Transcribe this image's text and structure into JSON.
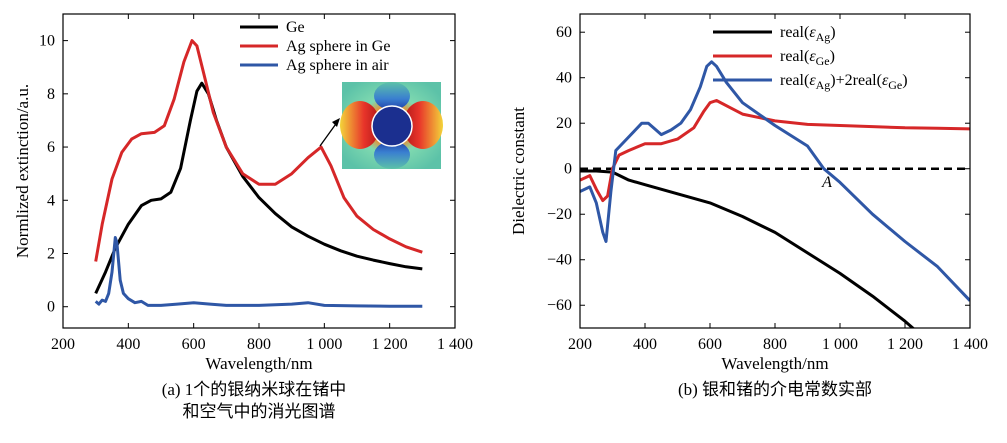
{
  "chart_data": [
    {
      "id": "a",
      "type": "line",
      "xlabel": "Wavelength/nm",
      "ylabel": "Normlized extinction/a.u.",
      "xlim": [
        200,
        1400
      ],
      "ylim": [
        -0.8,
        11
      ],
      "xticks": [
        200,
        400,
        600,
        800,
        1000,
        1200,
        1400
      ],
      "xtick_labels": [
        "200",
        "400",
        "600",
        "800",
        "1 000",
        "1 200",
        "1 400"
      ],
      "yticks": [
        0,
        2,
        4,
        6,
        8,
        10
      ],
      "ytick_labels": [
        "0",
        "2",
        "4",
        "6",
        "8",
        "10"
      ],
      "legend_position": "top-center",
      "caption": [
        "(a) 1个的银纳米球在锗中",
        "和空气中的消光图谱"
      ],
      "inset": "field map of Ag sphere with arrow to peak near 1000 nm",
      "series": [
        {
          "name": "Ge",
          "color": "#000000",
          "points": [
            [
              300,
              0.5
            ],
            [
              330,
              1.3
            ],
            [
              360,
              2.2
            ],
            [
              400,
              3.1
            ],
            [
              440,
              3.8
            ],
            [
              470,
              4.0
            ],
            [
              500,
              4.05
            ],
            [
              530,
              4.3
            ],
            [
              560,
              5.2
            ],
            [
              590,
              7.0
            ],
            [
              610,
              8.1
            ],
            [
              625,
              8.4
            ],
            [
              645,
              8.0
            ],
            [
              670,
              7.0
            ],
            [
              700,
              6.0
            ],
            [
              750,
              4.9
            ],
            [
              800,
              4.1
            ],
            [
              850,
              3.5
            ],
            [
              900,
              3.0
            ],
            [
              950,
              2.65
            ],
            [
              1000,
              2.35
            ],
            [
              1050,
              2.1
            ],
            [
              1100,
              1.9
            ],
            [
              1150,
              1.75
            ],
            [
              1200,
              1.62
            ],
            [
              1250,
              1.5
            ],
            [
              1300,
              1.42
            ]
          ]
        },
        {
          "name": "Ag sphere in Ge",
          "color": "#d62728",
          "points": [
            [
              300,
              1.7
            ],
            [
              320,
              3.1
            ],
            [
              350,
              4.8
            ],
            [
              380,
              5.8
            ],
            [
              410,
              6.3
            ],
            [
              440,
              6.5
            ],
            [
              480,
              6.55
            ],
            [
              510,
              6.8
            ],
            [
              540,
              7.8
            ],
            [
              570,
              9.2
            ],
            [
              595,
              10.0
            ],
            [
              610,
              9.8
            ],
            [
              630,
              8.8
            ],
            [
              660,
              7.3
            ],
            [
              700,
              6.0
            ],
            [
              750,
              5.0
            ],
            [
              800,
              4.6
            ],
            [
              850,
              4.6
            ],
            [
              900,
              5.0
            ],
            [
              950,
              5.6
            ],
            [
              990,
              6.0
            ],
            [
              1020,
              5.3
            ],
            [
              1060,
              4.1
            ],
            [
              1100,
              3.4
            ],
            [
              1150,
              2.9
            ],
            [
              1200,
              2.55
            ],
            [
              1250,
              2.25
            ],
            [
              1300,
              2.05
            ]
          ]
        },
        {
          "name": "Ag sphere in air",
          "color": "#2f57a6",
          "points": [
            [
              300,
              0.2
            ],
            [
              310,
              0.1
            ],
            [
              320,
              0.25
            ],
            [
              330,
              0.2
            ],
            [
              340,
              0.5
            ],
            [
              350,
              1.3
            ],
            [
              360,
              2.6
            ],
            [
              365,
              2.4
            ],
            [
              375,
              1.0
            ],
            [
              385,
              0.5
            ],
            [
              400,
              0.3
            ],
            [
              420,
              0.15
            ],
            [
              440,
              0.2
            ],
            [
              460,
              0.05
            ],
            [
              500,
              0.05
            ],
            [
              550,
              0.1
            ],
            [
              600,
              0.15
            ],
            [
              650,
              0.1
            ],
            [
              700,
              0.05
            ],
            [
              800,
              0.05
            ],
            [
              900,
              0.1
            ],
            [
              950,
              0.15
            ],
            [
              1000,
              0.05
            ],
            [
              1100,
              0.03
            ],
            [
              1200,
              0.02
            ],
            [
              1300,
              0.02
            ]
          ]
        }
      ]
    },
    {
      "id": "b",
      "type": "line",
      "xlabel": "Wavelength/nm",
      "ylabel": "Dielectric constant",
      "xlim": [
        200,
        1400
      ],
      "ylim": [
        -70,
        68
      ],
      "xticks": [
        200,
        400,
        600,
        800,
        1000,
        1200,
        1400
      ],
      "xtick_labels": [
        "200",
        "400",
        "600",
        "800",
        "1 000",
        "1 200",
        "1 400"
      ],
      "yticks": [
        -60,
        -40,
        -20,
        0,
        20,
        40,
        60
      ],
      "ytick_labels": [
        "−60",
        "−40",
        "−20",
        "0",
        "20",
        "40",
        "60"
      ],
      "legend_position": "top-right",
      "annotation": "A",
      "zero_line": "dashed",
      "caption": [
        "(b) 银和锗的介电常数实部"
      ],
      "series": [
        {
          "name_main": "real(",
          "name_sym": "ε",
          "name_sub": "Ag",
          "name_end": ")",
          "color": "#000000",
          "points": [
            [
              200,
              -1
            ],
            [
              250,
              -1
            ],
            [
              300,
              -1.5
            ],
            [
              350,
              -5
            ],
            [
              400,
              -7
            ],
            [
              500,
              -11
            ],
            [
              600,
              -15
            ],
            [
              700,
              -21
            ],
            [
              800,
              -28
            ],
            [
              900,
              -37
            ],
            [
              1000,
              -46
            ],
            [
              1100,
              -56
            ],
            [
              1200,
              -67
            ],
            [
              1240,
              -72
            ]
          ]
        },
        {
          "name_main": "real(",
          "name_sym": "ε",
          "name_sub": "Ge",
          "name_end": ")",
          "color": "#d62728",
          "points": [
            [
              200,
              -5
            ],
            [
              230,
              -3
            ],
            [
              250,
              -9
            ],
            [
              270,
              -14
            ],
            [
              285,
              -12
            ],
            [
              300,
              0
            ],
            [
              320,
              6
            ],
            [
              350,
              8
            ],
            [
              400,
              11
            ],
            [
              450,
              11
            ],
            [
              500,
              13
            ],
            [
              550,
              18
            ],
            [
              580,
              25
            ],
            [
              600,
              29
            ],
            [
              620,
              30
            ],
            [
              660,
              27
            ],
            [
              700,
              24
            ],
            [
              800,
              21
            ],
            [
              900,
              19.5
            ],
            [
              1000,
              19
            ],
            [
              1100,
              18.5
            ],
            [
              1200,
              18
            ],
            [
              1300,
              17.8
            ],
            [
              1400,
              17.5
            ]
          ]
        },
        {
          "name_main": "real(",
          "name_sym": "ε",
          "name_sub": "Ag",
          "name_mid": ")+2real(",
          "name_sym2": "ε",
          "name_sub2": "Ge",
          "name_end": ")",
          "color": "#2f57a6",
          "points": [
            [
              200,
              -10
            ],
            [
              230,
              -8
            ],
            [
              250,
              -15
            ],
            [
              270,
              -28
            ],
            [
              280,
              -32
            ],
            [
              295,
              -10
            ],
            [
              310,
              8
            ],
            [
              350,
              14
            ],
            [
              390,
              20
            ],
            [
              410,
              20
            ],
            [
              450,
              15
            ],
            [
              480,
              17
            ],
            [
              510,
              20
            ],
            [
              540,
              26
            ],
            [
              570,
              36
            ],
            [
              590,
              45
            ],
            [
              605,
              47
            ],
            [
              620,
              45
            ],
            [
              650,
              38
            ],
            [
              700,
              29
            ],
            [
              800,
              19
            ],
            [
              900,
              10
            ],
            [
              950,
              0
            ],
            [
              1000,
              -6
            ],
            [
              1100,
              -20
            ],
            [
              1200,
              -32
            ],
            [
              1300,
              -43
            ],
            [
              1400,
              -58
            ]
          ]
        }
      ]
    }
  ]
}
